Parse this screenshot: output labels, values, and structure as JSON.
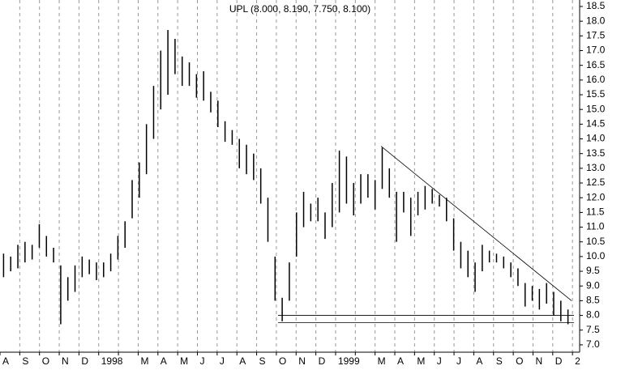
{
  "chart_data": {
    "type": "range",
    "title": "UPL (8.000, 8.190, 7.750, 8.100)",
    "categories": [
      "A",
      "S",
      "O",
      "N",
      "D",
      "1998",
      null,
      "M",
      "A",
      "M",
      "J",
      "J",
      "A",
      "S",
      "O",
      "N",
      "D",
      "1999",
      null,
      "M",
      "A",
      "M",
      "J",
      "J",
      "A",
      "S",
      "O",
      "N",
      "D",
      "2"
    ],
    "high": [
      10.1,
      10.0,
      10.4,
      10.5,
      10.4,
      11.1,
      10.7,
      10.3,
      9.7,
      9.3,
      9.7,
      10.0,
      9.9,
      9.8,
      9.8,
      10.1,
      10.7,
      11.2,
      12.6,
      13.2,
      14.5,
      15.8,
      17.0,
      17.7,
      17.4,
      16.8,
      16.6,
      16.2,
      16.3,
      15.6,
      15.3,
      14.6,
      14.3,
      14.0,
      13.8,
      13.5,
      13.0,
      12.0,
      10.0,
      8.6,
      9.8,
      11.5,
      12.2,
      11.8,
      12.0,
      11.5,
      12.5,
      13.6,
      13.4,
      12.5,
      12.8,
      12.8,
      12.6,
      13.7,
      13.0,
      12.2,
      12.2,
      12.0,
      12.2,
      12.4,
      12.3,
      12.1,
      12.0,
      11.3,
      10.5,
      10.2,
      9.8,
      10.4,
      10.2,
      10.1,
      10.0,
      9.8,
      9.6,
      9.1,
      9.0,
      8.9,
      9.1,
      8.8,
      8.5,
      8.2
    ],
    "low": [
      9.3,
      9.5,
      9.6,
      9.8,
      9.9,
      10.3,
      10.0,
      9.8,
      7.7,
      8.5,
      8.8,
      9.3,
      9.4,
      9.2,
      9.3,
      9.5,
      9.9,
      10.3,
      11.3,
      12.0,
      12.8,
      14.0,
      15.0,
      15.5,
      16.2,
      15.8,
      15.8,
      15.4,
      15.3,
      14.9,
      14.4,
      13.9,
      13.8,
      13.0,
      12.8,
      12.6,
      11.8,
      10.5,
      8.5,
      7.8,
      8.5,
      10.0,
      11.0,
      11.2,
      11.2,
      10.6,
      11.0,
      11.5,
      11.8,
      11.4,
      11.8,
      12.0,
      11.6,
      12.3,
      12.0,
      10.5,
      11.5,
      10.7,
      11.4,
      11.6,
      11.8,
      11.7,
      11.2,
      10.2,
      9.6,
      9.3,
      8.8,
      9.5,
      9.8,
      9.8,
      9.6,
      9.3,
      9.0,
      8.3,
      8.5,
      8.2,
      8.4,
      8.0,
      7.8,
      7.7
    ],
    "color": "#000000",
    "resistance": [
      13.75,
      8.5
    ],
    "support_levels": [
      8.0,
      7.75
    ],
    "ylim": [
      6.75,
      18.72
    ],
    "yticks": [
      {
        "value": 7.0,
        "label": "7.0"
      },
      {
        "value": 7.5,
        "label": "7.5"
      },
      {
        "value": 8.0,
        "label": "8.0"
      },
      {
        "value": 8.5,
        "label": "8.5"
      },
      {
        "value": 9.0,
        "label": "9.0"
      },
      {
        "value": 9.5,
        "label": "9.5"
      },
      {
        "value": 10.0,
        "label": "10.0"
      },
      {
        "value": 10.5,
        "label": "10.5"
      },
      {
        "value": 11.0,
        "label": "11.0"
      },
      {
        "value": 11.5,
        "label": "11.5"
      },
      {
        "value": 12.0,
        "label": "12.0"
      },
      {
        "value": 12.5,
        "label": "12.5"
      },
      {
        "value": 13.0,
        "label": "13.0"
      },
      {
        "value": 13.5,
        "label": "13.5"
      },
      {
        "value": 14.0,
        "label": "14.0"
      },
      {
        "value": 14.5,
        "label": "14.5"
      },
      {
        "value": 15.0,
        "label": "15.0"
      },
      {
        "value": 15.5,
        "label": "15.5"
      },
      {
        "value": 16.0,
        "label": "16.0"
      },
      {
        "value": 16.5,
        "label": "16.5"
      },
      {
        "value": 17.0,
        "label": "17.0"
      },
      {
        "value": 17.5,
        "label": "17.5"
      },
      {
        "value": 18.0,
        "label": "18.0"
      },
      {
        "value": 18.5,
        "label": "18.5"
      }
    ],
    "grid": true
  }
}
